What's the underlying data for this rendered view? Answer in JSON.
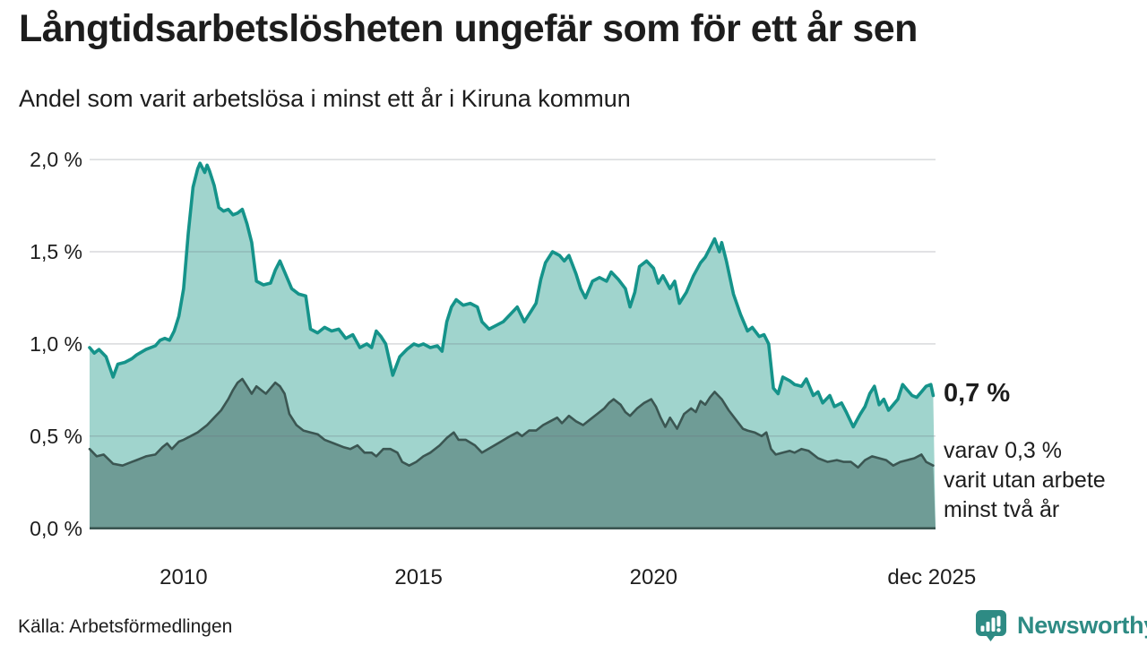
{
  "header": {
    "title": "Långtidsarbetslösheten ungefär som för ett år sen",
    "subtitle": "Andel som varit arbetslösa i minst ett år i Kiruna kommun"
  },
  "chart_data": {
    "type": "area",
    "title": "Långtidsarbetslösheten ungefär som för ett år sen",
    "subtitle": "Andel som varit arbetslösa i minst ett år i Kiruna kommun",
    "unit": "%",
    "grid": "horizontal",
    "xlim": [
      2008,
      2026
    ],
    "ylim": [
      0,
      2.0
    ],
    "y_ticks": [
      "0,0 %",
      "0,5 %",
      "1,0 %",
      "1,5 %",
      "2,0 %"
    ],
    "y_tick_values": [
      0,
      0.5,
      1.0,
      1.5,
      2.0
    ],
    "x_ticks": [
      {
        "label": "2010",
        "year": 2010
      },
      {
        "label": "2015",
        "year": 2015
      },
      {
        "label": "2020",
        "year": 2020
      },
      {
        "label": "dec 2025",
        "year": 2025.92
      }
    ],
    "series": [
      {
        "name": "arbetslösa minst ett år",
        "color": "#15938a",
        "fill": "#a0d4cd",
        "end_value": 0.7,
        "points": [
          [
            2008.0,
            0.98
          ],
          [
            2008.1,
            0.95
          ],
          [
            2008.2,
            0.97
          ],
          [
            2008.35,
            0.93
          ],
          [
            2008.5,
            0.82
          ],
          [
            2008.6,
            0.89
          ],
          [
            2008.75,
            0.9
          ],
          [
            2008.9,
            0.92
          ],
          [
            2009.0,
            0.94
          ],
          [
            2009.2,
            0.97
          ],
          [
            2009.4,
            0.99
          ],
          [
            2009.5,
            1.02
          ],
          [
            2009.6,
            1.03
          ],
          [
            2009.7,
            1.02
          ],
          [
            2009.8,
            1.07
          ],
          [
            2009.9,
            1.15
          ],
          [
            2010.0,
            1.3
          ],
          [
            2010.1,
            1.6
          ],
          [
            2010.2,
            1.85
          ],
          [
            2010.3,
            1.95
          ],
          [
            2010.35,
            1.98
          ],
          [
            2010.45,
            1.93
          ],
          [
            2010.5,
            1.97
          ],
          [
            2010.55,
            1.94
          ],
          [
            2010.65,
            1.86
          ],
          [
            2010.75,
            1.74
          ],
          [
            2010.85,
            1.72
          ],
          [
            2010.95,
            1.73
          ],
          [
            2011.05,
            1.7
          ],
          [
            2011.15,
            1.71
          ],
          [
            2011.25,
            1.73
          ],
          [
            2011.35,
            1.65
          ],
          [
            2011.45,
            1.55
          ],
          [
            2011.55,
            1.34
          ],
          [
            2011.7,
            1.32
          ],
          [
            2011.85,
            1.33
          ],
          [
            2011.95,
            1.4
          ],
          [
            2012.05,
            1.45
          ],
          [
            2012.15,
            1.39
          ],
          [
            2012.3,
            1.3
          ],
          [
            2012.45,
            1.27
          ],
          [
            2012.6,
            1.26
          ],
          [
            2012.7,
            1.08
          ],
          [
            2012.85,
            1.06
          ],
          [
            2013.0,
            1.09
          ],
          [
            2013.15,
            1.07
          ],
          [
            2013.3,
            1.08
          ],
          [
            2013.45,
            1.03
          ],
          [
            2013.6,
            1.05
          ],
          [
            2013.75,
            0.98
          ],
          [
            2013.9,
            1.0
          ],
          [
            2014.0,
            0.98
          ],
          [
            2014.1,
            1.07
          ],
          [
            2014.2,
            1.04
          ],
          [
            2014.3,
            1.0
          ],
          [
            2014.45,
            0.83
          ],
          [
            2014.6,
            0.93
          ],
          [
            2014.75,
            0.97
          ],
          [
            2014.9,
            1.0
          ],
          [
            2015.0,
            0.99
          ],
          [
            2015.1,
            1.0
          ],
          [
            2015.25,
            0.98
          ],
          [
            2015.4,
            0.99
          ],
          [
            2015.5,
            0.96
          ],
          [
            2015.6,
            1.12
          ],
          [
            2015.7,
            1.2
          ],
          [
            2015.8,
            1.24
          ],
          [
            2015.95,
            1.21
          ],
          [
            2016.1,
            1.22
          ],
          [
            2016.25,
            1.2
          ],
          [
            2016.35,
            1.12
          ],
          [
            2016.5,
            1.08
          ],
          [
            2016.65,
            1.1
          ],
          [
            2016.8,
            1.12
          ],
          [
            2016.95,
            1.16
          ],
          [
            2017.1,
            1.2
          ],
          [
            2017.25,
            1.12
          ],
          [
            2017.4,
            1.18
          ],
          [
            2017.5,
            1.22
          ],
          [
            2017.6,
            1.35
          ],
          [
            2017.7,
            1.44
          ],
          [
            2017.85,
            1.5
          ],
          [
            2018.0,
            1.48
          ],
          [
            2018.1,
            1.45
          ],
          [
            2018.2,
            1.48
          ],
          [
            2018.35,
            1.38
          ],
          [
            2018.45,
            1.3
          ],
          [
            2018.55,
            1.25
          ],
          [
            2018.7,
            1.34
          ],
          [
            2018.85,
            1.36
          ],
          [
            2019.0,
            1.34
          ],
          [
            2019.1,
            1.39
          ],
          [
            2019.25,
            1.35
          ],
          [
            2019.4,
            1.3
          ],
          [
            2019.5,
            1.2
          ],
          [
            2019.6,
            1.28
          ],
          [
            2019.7,
            1.42
          ],
          [
            2019.85,
            1.45
          ],
          [
            2020.0,
            1.41
          ],
          [
            2020.1,
            1.33
          ],
          [
            2020.2,
            1.37
          ],
          [
            2020.35,
            1.3
          ],
          [
            2020.45,
            1.34
          ],
          [
            2020.55,
            1.22
          ],
          [
            2020.7,
            1.28
          ],
          [
            2020.85,
            1.37
          ],
          [
            2021.0,
            1.44
          ],
          [
            2021.1,
            1.47
          ],
          [
            2021.2,
            1.52
          ],
          [
            2021.3,
            1.57
          ],
          [
            2021.4,
            1.5
          ],
          [
            2021.45,
            1.55
          ],
          [
            2021.55,
            1.45
          ],
          [
            2021.7,
            1.27
          ],
          [
            2021.85,
            1.16
          ],
          [
            2022.0,
            1.07
          ],
          [
            2022.1,
            1.09
          ],
          [
            2022.25,
            1.04
          ],
          [
            2022.35,
            1.05
          ],
          [
            2022.45,
            1.0
          ],
          [
            2022.55,
            0.76
          ],
          [
            2022.65,
            0.73
          ],
          [
            2022.75,
            0.82
          ],
          [
            2022.9,
            0.8
          ],
          [
            2023.0,
            0.78
          ],
          [
            2023.15,
            0.77
          ],
          [
            2023.25,
            0.81
          ],
          [
            2023.4,
            0.72
          ],
          [
            2023.5,
            0.74
          ],
          [
            2023.6,
            0.68
          ],
          [
            2023.75,
            0.72
          ],
          [
            2023.85,
            0.66
          ],
          [
            2024.0,
            0.68
          ],
          [
            2024.1,
            0.63
          ],
          [
            2024.25,
            0.55
          ],
          [
            2024.4,
            0.62
          ],
          [
            2024.5,
            0.66
          ],
          [
            2024.6,
            0.73
          ],
          [
            2024.7,
            0.77
          ],
          [
            2024.8,
            0.67
          ],
          [
            2024.9,
            0.7
          ],
          [
            2025.0,
            0.64
          ],
          [
            2025.1,
            0.67
          ],
          [
            2025.2,
            0.7
          ],
          [
            2025.3,
            0.78
          ],
          [
            2025.4,
            0.75
          ],
          [
            2025.5,
            0.72
          ],
          [
            2025.6,
            0.71
          ],
          [
            2025.7,
            0.74
          ],
          [
            2025.8,
            0.77
          ],
          [
            2025.9,
            0.78
          ],
          [
            2025.95,
            0.72
          ]
        ]
      },
      {
        "name": "varav utan arbete minst två år",
        "color": "#3b5652",
        "fill": "#6f9c96",
        "end_value": 0.3,
        "points": [
          [
            2008.0,
            0.43
          ],
          [
            2008.15,
            0.39
          ],
          [
            2008.3,
            0.4
          ],
          [
            2008.5,
            0.35
          ],
          [
            2008.7,
            0.34
          ],
          [
            2008.9,
            0.36
          ],
          [
            2009.0,
            0.37
          ],
          [
            2009.2,
            0.39
          ],
          [
            2009.4,
            0.4
          ],
          [
            2009.55,
            0.44
          ],
          [
            2009.65,
            0.46
          ],
          [
            2009.75,
            0.43
          ],
          [
            2009.9,
            0.47
          ],
          [
            2010.0,
            0.48
          ],
          [
            2010.15,
            0.5
          ],
          [
            2010.3,
            0.52
          ],
          [
            2010.5,
            0.56
          ],
          [
            2010.65,
            0.6
          ],
          [
            2010.8,
            0.64
          ],
          [
            2010.95,
            0.7
          ],
          [
            2011.05,
            0.75
          ],
          [
            2011.15,
            0.79
          ],
          [
            2011.25,
            0.81
          ],
          [
            2011.35,
            0.77
          ],
          [
            2011.45,
            0.73
          ],
          [
            2011.55,
            0.77
          ],
          [
            2011.65,
            0.75
          ],
          [
            2011.75,
            0.73
          ],
          [
            2011.85,
            0.76
          ],
          [
            2011.95,
            0.79
          ],
          [
            2012.05,
            0.77
          ],
          [
            2012.15,
            0.73
          ],
          [
            2012.25,
            0.62
          ],
          [
            2012.4,
            0.56
          ],
          [
            2012.55,
            0.53
          ],
          [
            2012.7,
            0.52
          ],
          [
            2012.85,
            0.51
          ],
          [
            2013.0,
            0.48
          ],
          [
            2013.2,
            0.46
          ],
          [
            2013.4,
            0.44
          ],
          [
            2013.55,
            0.43
          ],
          [
            2013.7,
            0.45
          ],
          [
            2013.85,
            0.41
          ],
          [
            2014.0,
            0.41
          ],
          [
            2014.1,
            0.39
          ],
          [
            2014.25,
            0.43
          ],
          [
            2014.4,
            0.43
          ],
          [
            2014.55,
            0.41
          ],
          [
            2014.65,
            0.36
          ],
          [
            2014.8,
            0.34
          ],
          [
            2014.95,
            0.36
          ],
          [
            2015.1,
            0.39
          ],
          [
            2015.25,
            0.41
          ],
          [
            2015.45,
            0.45
          ],
          [
            2015.6,
            0.49
          ],
          [
            2015.75,
            0.52
          ],
          [
            2015.85,
            0.48
          ],
          [
            2016.0,
            0.48
          ],
          [
            2016.2,
            0.45
          ],
          [
            2016.35,
            0.41
          ],
          [
            2016.55,
            0.44
          ],
          [
            2016.75,
            0.47
          ],
          [
            2016.95,
            0.5
          ],
          [
            2017.1,
            0.52
          ],
          [
            2017.2,
            0.5
          ],
          [
            2017.35,
            0.53
          ],
          [
            2017.5,
            0.53
          ],
          [
            2017.65,
            0.56
          ],
          [
            2017.8,
            0.58
          ],
          [
            2017.95,
            0.6
          ],
          [
            2018.05,
            0.57
          ],
          [
            2018.2,
            0.61
          ],
          [
            2018.35,
            0.58
          ],
          [
            2018.5,
            0.56
          ],
          [
            2018.65,
            0.59
          ],
          [
            2018.8,
            0.62
          ],
          [
            2018.95,
            0.65
          ],
          [
            2019.05,
            0.68
          ],
          [
            2019.15,
            0.7
          ],
          [
            2019.3,
            0.67
          ],
          [
            2019.4,
            0.63
          ],
          [
            2019.5,
            0.61
          ],
          [
            2019.65,
            0.65
          ],
          [
            2019.8,
            0.68
          ],
          [
            2019.95,
            0.7
          ],
          [
            2020.05,
            0.66
          ],
          [
            2020.15,
            0.6
          ],
          [
            2020.25,
            0.55
          ],
          [
            2020.35,
            0.6
          ],
          [
            2020.5,
            0.54
          ],
          [
            2020.65,
            0.62
          ],
          [
            2020.8,
            0.65
          ],
          [
            2020.9,
            0.63
          ],
          [
            2021.0,
            0.69
          ],
          [
            2021.1,
            0.67
          ],
          [
            2021.2,
            0.71
          ],
          [
            2021.3,
            0.74
          ],
          [
            2021.45,
            0.7
          ],
          [
            2021.6,
            0.64
          ],
          [
            2021.75,
            0.59
          ],
          [
            2021.9,
            0.54
          ],
          [
            2022.0,
            0.53
          ],
          [
            2022.15,
            0.52
          ],
          [
            2022.3,
            0.5
          ],
          [
            2022.4,
            0.52
          ],
          [
            2022.5,
            0.43
          ],
          [
            2022.6,
            0.4
          ],
          [
            2022.75,
            0.41
          ],
          [
            2022.9,
            0.42
          ],
          [
            2023.0,
            0.41
          ],
          [
            2023.15,
            0.43
          ],
          [
            2023.3,
            0.42
          ],
          [
            2023.5,
            0.38
          ],
          [
            2023.7,
            0.36
          ],
          [
            2023.9,
            0.37
          ],
          [
            2024.05,
            0.36
          ],
          [
            2024.2,
            0.36
          ],
          [
            2024.35,
            0.33
          ],
          [
            2024.5,
            0.37
          ],
          [
            2024.65,
            0.39
          ],
          [
            2024.8,
            0.38
          ],
          [
            2024.95,
            0.37
          ],
          [
            2025.1,
            0.34
          ],
          [
            2025.25,
            0.36
          ],
          [
            2025.4,
            0.37
          ],
          [
            2025.55,
            0.38
          ],
          [
            2025.7,
            0.4
          ],
          [
            2025.8,
            0.36
          ],
          [
            2025.95,
            0.34
          ]
        ]
      }
    ],
    "annotations": {
      "end_value_label": "0,7 %",
      "note_lines": [
        "varav 0,3 %",
        "varit utan arbete",
        "minst två år"
      ]
    },
    "legend_position": "none"
  },
  "footer": {
    "source": "Källa: Arbetsförmedlingen",
    "logo_text": "Newsworthy"
  },
  "icons": {
    "logo": "bar-chart-speech-bubble-icon"
  },
  "colors": {
    "series1_line": "#15938a",
    "series1_fill": "#a0d4cd",
    "series2_line": "#3b5652",
    "series2_fill": "#6f9c96",
    "gridline": "#e1e1e6",
    "text": "#1d1d1d",
    "logo_teal": "#2e8b84",
    "background": "#ffffff"
  }
}
